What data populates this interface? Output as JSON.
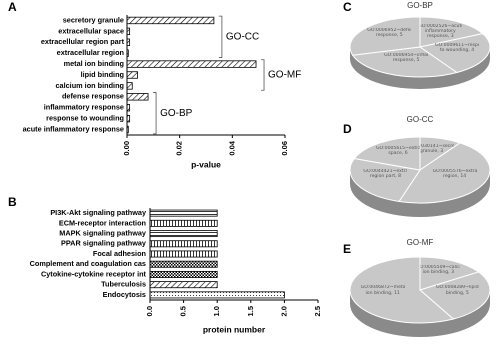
{
  "chart_data": [
    {
      "type": "bar",
      "panel": "A",
      "orientation": "horizontal",
      "groups": [
        {
          "label": "GO-CC",
          "categories": [
            "secretory granule",
            "extracellular space",
            "extracellular region part",
            "extracellular region"
          ],
          "values": [
            0.033,
            0.001,
            0.001,
            0.0005
          ]
        },
        {
          "label": "GO-MF",
          "categories": [
            "metal ion binding",
            "lipid binding",
            "calcium ion binding"
          ],
          "values": [
            0.049,
            0.004,
            0.002
          ]
        },
        {
          "label": "GO-BP",
          "categories": [
            "defense response",
            "inflammatory response",
            "response to wounding",
            "acute inflammatory response"
          ],
          "values": [
            0.008,
            0.001,
            0.001,
            0.0005
          ]
        }
      ],
      "xlabel": "p-value",
      "xlim": [
        0,
        0.06
      ],
      "xticks": [
        {
          "value": 0,
          "label": "0.00"
        },
        0.02,
        0.04,
        0.06
      ]
    },
    {
      "type": "bar",
      "panel": "B",
      "orientation": "horizontal",
      "categories": [
        "PI3K-Akt signaling pathway",
        "ECM-receptor interaction",
        "MAPK signaling pathway",
        "PPAR signaling pathway",
        "Focal adhesion",
        "Complement and coagulation cas",
        "Cytokine-cytokine receptor int",
        "Tuberculosis",
        "Endocytosis"
      ],
      "values": [
        1,
        1,
        1,
        1,
        1,
        1,
        1,
        1,
        2
      ],
      "xlabel": "protein number",
      "xlim": [
        0,
        2.5
      ],
      "xticks": [
        {
          "value": 0,
          "label": "0.0"
        },
        0.5,
        {
          "value": 1,
          "label": "1.0"
        },
        1.5,
        {
          "value": 2,
          "label": "2.0"
        },
        2.5
      ]
    },
    {
      "type": "pie",
      "panel": "C",
      "title": "GO-BP",
      "labels": [
        "GO:0002526~acute inflammatory response, 3",
        "GO:0009611~response to wounding, 4",
        "GO:0006954~inflammatory response, 5",
        "GO:0006952~defense response, 5"
      ],
      "values": [
        3,
        4,
        5,
        5
      ]
    },
    {
      "type": "pie",
      "panel": "D",
      "title": "GO-CC",
      "labels": [
        "GO:0030141~secretory granule, 3",
        "GO:0005576~extracellular region, 14",
        "GO:0044421~extracellular region part, 8",
        "GO:0005615~extracellular space, 6"
      ],
      "values": [
        3,
        14,
        8,
        6
      ]
    },
    {
      "type": "pie",
      "panel": "E",
      "title": "GO-MF",
      "labels": [
        "GO:0005509~calcium ion binding, 3",
        "GO:0008289~lipid binding, 5",
        "GO:0046872~metal ion binding, 11"
      ],
      "values": [
        3,
        5,
        11
      ]
    }
  ]
}
